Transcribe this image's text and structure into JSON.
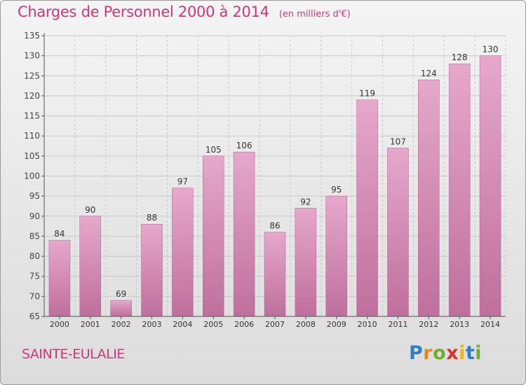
{
  "title": "Charges de Personnel 2000 à 2014",
  "subtitle": "(en milliers d'€)",
  "commune": "SAINTE-EULALIE",
  "logo": {
    "letters": [
      "P",
      "r",
      "o",
      "x",
      "i",
      "t",
      "i"
    ],
    "colors": [
      "#2e7fc2",
      "#e8871e",
      "#6fae2f",
      "#d9322e",
      "#e8b71e",
      "#2e7fc2",
      "#6fae2f"
    ]
  },
  "colors": {
    "accent": "#d2357a",
    "bar_light": "#e6a8cb",
    "bar_dark": "#bf6f9c",
    "grid": "#c8c8c8"
  },
  "chart_data": {
    "type": "bar",
    "categories": [
      "2000",
      "2001",
      "2002",
      "2003",
      "2004",
      "2005",
      "2006",
      "2007",
      "2008",
      "2009",
      "2010",
      "2011",
      "2012",
      "2013",
      "2014"
    ],
    "values": [
      84,
      90,
      69,
      88,
      97,
      105,
      106,
      86,
      92,
      95,
      119,
      107,
      124,
      128,
      130
    ],
    "title": "Charges de Personnel 2000 à 2014",
    "subtitle": "(en milliers d'€)",
    "ylim": [
      65,
      135
    ],
    "yticks": [
      65,
      70,
      75,
      80,
      85,
      90,
      95,
      100,
      105,
      110,
      115,
      120,
      125,
      130,
      135
    ],
    "grid": true
  }
}
